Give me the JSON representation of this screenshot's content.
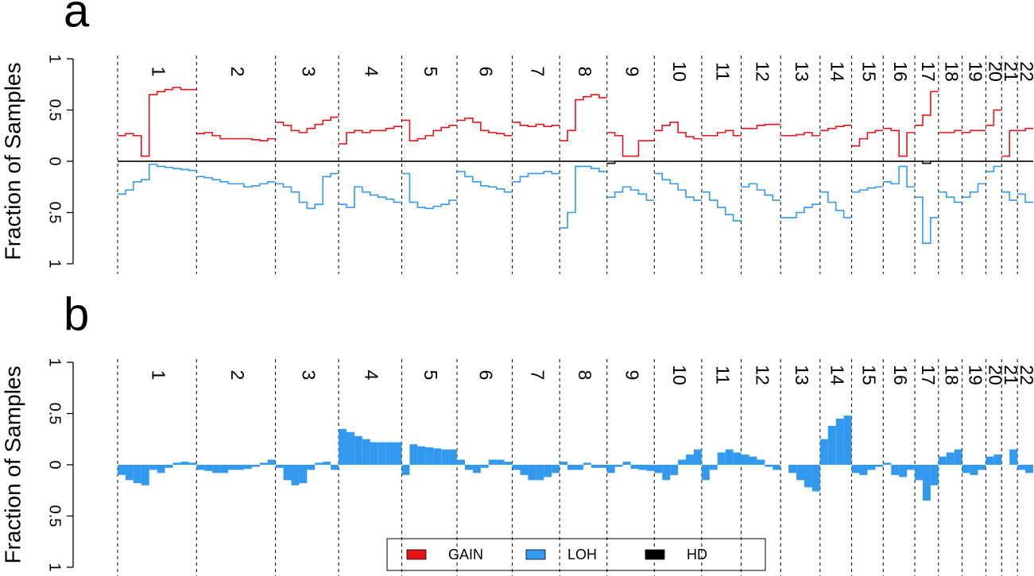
{
  "chart_data": [
    {
      "type": "line",
      "title": "a",
      "y_label": "Fraction of Samples",
      "categories": [
        "1",
        "2",
        "3",
        "4",
        "5",
        "6",
        "7",
        "8",
        "9",
        "10",
        "11",
        "12",
        "13",
        "14",
        "15",
        "16",
        "17",
        "18",
        "19",
        "20",
        "21",
        "22"
      ],
      "ylim": [
        -1,
        1
      ],
      "yticks": [
        {
          "value": -1,
          "label": "1"
        },
        {
          "value": -0.5,
          "label": "0.5"
        },
        0,
        0.5,
        1
      ],
      "legend": "bottom",
      "series": [
        {
          "name": "GAIN",
          "color": "#e8141a",
          "values": [
            [
              0.25,
              0.27,
              0.25,
              0.05,
              0.65,
              0.68,
              0.7,
              0.72,
              0.7,
              0.7
            ],
            [
              0.27,
              0.28,
              0.25,
              0.22,
              0.22,
              0.22,
              0.22,
              0.21,
              0.2,
              0.22
            ],
            [
              0.38,
              0.35,
              0.3,
              0.28,
              0.32,
              0.36,
              0.4,
              0.43
            ],
            [
              0.17,
              0.28,
              0.3,
              0.28,
              0.3,
              0.3,
              0.32,
              0.34
            ],
            [
              0.4,
              0.2,
              0.22,
              0.25,
              0.3,
              0.33,
              0.35
            ],
            [
              0.4,
              0.42,
              0.38,
              0.3,
              0.28,
              0.27,
              0.25
            ],
            [
              0.38,
              0.35,
              0.34,
              0.36,
              0.34,
              0.35
            ],
            [
              0.2,
              0.3,
              0.6,
              0.63,
              0.65,
              0.62
            ],
            [
              0.28,
              0.25,
              0.05,
              0.05,
              0.2,
              0.2
            ],
            [
              0.3,
              0.35,
              0.38,
              0.28,
              0.24,
              0.22
            ],
            [
              0.25,
              0.25,
              0.28,
              0.3,
              0.25
            ],
            [
              0.32,
              0.32,
              0.35,
              0.36,
              0.36
            ],
            [
              0.25,
              0.25,
              0.26,
              0.28,
              0.25
            ],
            [
              0.3,
              0.32,
              0.34,
              0.35
            ],
            [
              0.15,
              0.22,
              0.28,
              0.3
            ],
            [
              0.32,
              0.3,
              0.05,
              0.28
            ],
            [
              0.35,
              0.45,
              0.68
            ],
            [
              0.28,
              0.28,
              0.3
            ],
            [
              0.28,
              0.3,
              0.3
            ],
            [
              0.35,
              0.5
            ],
            [
              0.05,
              0.3
            ],
            [
              0.3,
              0.32
            ]
          ]
        },
        {
          "name": "LOH",
          "color": "#3399ee",
          "values": [
            [
              -0.32,
              -0.28,
              -0.2,
              -0.18,
              -0.03,
              -0.05,
              -0.06,
              -0.07,
              -0.08,
              -0.09
            ],
            [
              -0.15,
              -0.16,
              -0.18,
              -0.2,
              -0.22,
              -0.22,
              -0.25,
              -0.24,
              -0.22,
              -0.2
            ],
            [
              -0.22,
              -0.25,
              -0.3,
              -0.4,
              -0.46,
              -0.42,
              -0.15,
              -0.12
            ],
            [
              -0.42,
              -0.45,
              -0.25,
              -0.3,
              -0.33,
              -0.35,
              -0.37,
              -0.4
            ],
            [
              -0.12,
              -0.4,
              -0.45,
              -0.46,
              -0.44,
              -0.42,
              -0.38
            ],
            [
              -0.1,
              -0.15,
              -0.2,
              -0.24,
              -0.25,
              -0.27,
              -0.3
            ],
            [
              -0.2,
              -0.15,
              -0.12,
              -0.12,
              -0.1,
              -0.12
            ],
            [
              -0.65,
              -0.5,
              -0.05,
              -0.05,
              -0.07,
              -0.1
            ],
            [
              -0.35,
              -0.3,
              -0.25,
              -0.28,
              -0.32,
              -0.38
            ],
            [
              -0.12,
              -0.18,
              -0.22,
              -0.28,
              -0.35,
              -0.38
            ],
            [
              -0.3,
              -0.38,
              -0.45,
              -0.52,
              -0.58
            ],
            [
              -0.25,
              -0.22,
              -0.28,
              -0.33,
              -0.38
            ],
            [
              -0.55,
              -0.55,
              -0.5,
              -0.45,
              -0.42
            ],
            [
              -0.3,
              -0.4,
              -0.48,
              -0.55
            ],
            [
              -0.3,
              -0.28,
              -0.26,
              -0.25
            ],
            [
              -0.2,
              -0.22,
              -0.05,
              -0.25
            ],
            [
              -0.35,
              -0.8,
              -0.55
            ],
            [
              -0.3,
              -0.35,
              -0.4
            ],
            [
              -0.35,
              -0.3,
              -0.22
            ],
            [
              -0.1,
              -0.05
            ],
            [
              -0.3,
              -0.38
            ],
            [
              -0.32,
              -0.4
            ]
          ]
        },
        {
          "name": "HD",
          "color": "#000000",
          "values": [
            [
              0,
              0,
              0,
              0,
              0,
              0,
              0,
              0,
              0,
              0
            ],
            [
              0,
              0,
              0,
              0,
              0,
              0,
              0,
              0,
              0,
              0
            ],
            [
              0,
              0,
              0,
              0,
              0,
              0,
              0,
              0
            ],
            [
              0,
              0,
              0,
              0,
              0,
              0,
              0,
              0
            ],
            [
              0,
              0,
              0,
              0,
              0,
              0,
              0
            ],
            [
              0,
              0,
              0,
              0,
              0,
              0,
              0
            ],
            [
              0,
              0,
              0,
              0,
              0,
              0
            ],
            [
              0,
              0,
              0,
              0,
              0,
              0
            ],
            [
              -0.02,
              0,
              0,
              0,
              0,
              0
            ],
            [
              0,
              0,
              0,
              0,
              0,
              0
            ],
            [
              0,
              0,
              0,
              0,
              0
            ],
            [
              0,
              0,
              0,
              0,
              0
            ],
            [
              0,
              0,
              0,
              0,
              0
            ],
            [
              0,
              0,
              0,
              0
            ],
            [
              0,
              0,
              0,
              0
            ],
            [
              0,
              0,
              0,
              0
            ],
            [
              0,
              -0.02,
              0
            ],
            [
              0,
              0,
              0
            ],
            [
              0,
              0,
              0
            ],
            [
              0,
              0
            ],
            [
              0,
              0
            ],
            [
              0,
              0
            ]
          ]
        }
      ]
    },
    {
      "type": "bar",
      "title": "b",
      "y_label": "Fraction of Samples",
      "categories": [
        "1",
        "2",
        "3",
        "4",
        "5",
        "6",
        "7",
        "8",
        "9",
        "10",
        "11",
        "12",
        "13",
        "14",
        "15",
        "16",
        "17",
        "18",
        "19",
        "20",
        "21",
        "22"
      ],
      "ylim": [
        -1,
        1
      ],
      "yticks": [
        {
          "value": -1,
          "label": "1"
        },
        {
          "value": -0.5,
          "label": "0.5"
        },
        0,
        0.5,
        1
      ],
      "color": "#3399ee",
      "values": [
        [
          -0.1,
          -0.15,
          -0.18,
          -0.2,
          -0.05,
          -0.08,
          -0.03,
          0.02,
          0.03,
          0.02
        ],
        [
          -0.05,
          -0.06,
          -0.08,
          -0.08,
          -0.05,
          -0.05,
          -0.04,
          -0.02,
          0.02,
          0.05
        ],
        [
          -0.03,
          -0.15,
          -0.2,
          -0.18,
          -0.05,
          0.02,
          0.03,
          -0.05
        ],
        [
          0.35,
          0.32,
          0.28,
          0.25,
          0.22,
          0.22,
          0.22,
          0.22
        ],
        [
          -0.1,
          0.2,
          0.18,
          0.17,
          0.16,
          0.15,
          0.15
        ],
        [
          0.05,
          -0.05,
          -0.08,
          -0.03,
          0.05,
          0.05,
          0.03
        ],
        [
          -0.05,
          -0.1,
          -0.15,
          -0.15,
          -0.12,
          -0.08
        ],
        [
          0.03,
          -0.05,
          -0.05,
          0.02,
          -0.03,
          -0.03
        ],
        [
          -0.08,
          -0.02,
          0.03,
          -0.04,
          -0.05,
          -0.06
        ],
        [
          -0.08,
          -0.15,
          -0.1,
          0.05,
          0.1,
          0.15
        ],
        [
          -0.15,
          -0.05,
          0.12,
          0.15,
          0.12
        ],
        [
          0.1,
          0.08,
          0.05,
          -0.02,
          -0.05
        ],
        [
          0,
          -0.08,
          -0.15,
          -0.22,
          -0.26
        ],
        [
          0.25,
          0.38,
          0.45,
          0.48
        ],
        [
          -0.08,
          -0.1,
          -0.05,
          -0.02
        ],
        [
          0.02,
          -0.1,
          -0.12,
          -0.05
        ],
        [
          -0.15,
          -0.35,
          -0.2
        ],
        [
          0.08,
          0.12,
          0.15
        ],
        [
          -0.08,
          -0.1,
          -0.05
        ],
        [
          0.08,
          0.1
        ],
        [
          0,
          0.15
        ],
        [
          -0.05,
          -0.08
        ]
      ]
    }
  ]
}
